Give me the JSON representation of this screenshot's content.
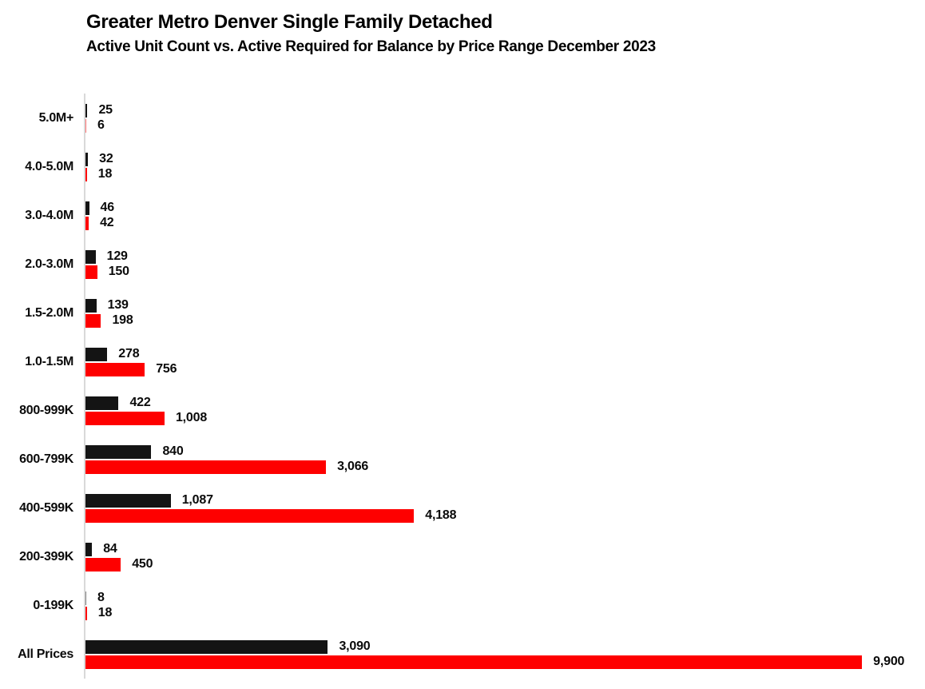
{
  "header": {
    "title": "Greater Metro Denver Single Family Detached",
    "subtitle": "Active Unit Count vs. Active Required for Balance by Price Range December 2023"
  },
  "chart_data": {
    "type": "bar",
    "orientation": "horizontal",
    "title": "Greater Metro Denver Single Family Detached",
    "subtitle": "Active Unit Count vs. Active Required for Balance by Price Range December 2023",
    "categories": [
      "5.0M+",
      "4.0-5.0M",
      "3.0-4.0M",
      "2.0-3.0M",
      "1.5-2.0M",
      "1.0-1.5M",
      "800-999K",
      "600-799K",
      "400-599K",
      "200-399K",
      "0-199K",
      "All Prices"
    ],
    "series": [
      {
        "name": "Active Unit Count",
        "color": "#141414",
        "values": [
          25,
          32,
          46,
          129,
          139,
          278,
          422,
          840,
          1087,
          84,
          8,
          3090
        ],
        "labels": [
          "25",
          "32",
          "46",
          "129",
          "139",
          "278",
          "422",
          "840",
          "1,087",
          "84",
          "8",
          "3,090"
        ]
      },
      {
        "name": "Active Required for Balance",
        "color": "#fe0000",
        "values": [
          6,
          18,
          42,
          150,
          198,
          756,
          1008,
          3066,
          4188,
          450,
          18,
          9900
        ],
        "labels": [
          "6",
          "18",
          "42",
          "150",
          "198",
          "756",
          "1,008",
          "3,066",
          "4,188",
          "450",
          "18",
          "9,900"
        ]
      }
    ],
    "value_axis": {
      "min": 0,
      "max": 10700,
      "ticks_visible": false
    },
    "category_axis_line_color": "#d9d9d9",
    "gridlines": false,
    "legend_position": "none",
    "bar_value_labels": true
  }
}
